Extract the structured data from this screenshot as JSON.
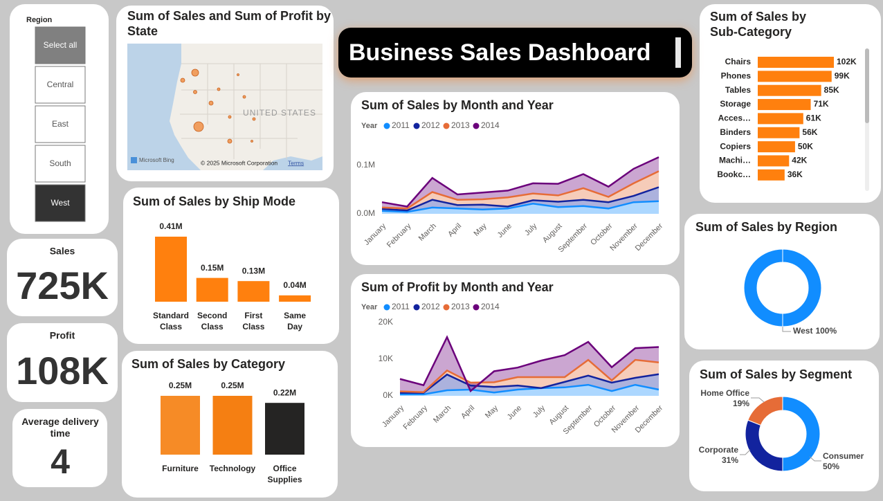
{
  "dashboard_title": "Business Sales Dashboard",
  "slicer": {
    "title": "Region",
    "options": [
      "Select all",
      "Central",
      "East",
      "South",
      "West"
    ],
    "selected": 4
  },
  "cards": [
    {
      "label": "Sales",
      "value": "725K"
    },
    {
      "label": "Profit",
      "value": "108K"
    },
    {
      "label": "Average delivery time",
      "value": 4
    }
  ],
  "map": {
    "title": "Sum of Sales and Sum of Profit by State",
    "country_label": "UNITED STATES",
    "brand": "Microsoft Bing",
    "attribution": "© 2025 Microsoft Corporation",
    "terms_link": "Terms"
  },
  "chart_data": [
    {
      "type": "bar",
      "title": "Sum of Sales by Ship Mode",
      "categories": [
        "Standard Class",
        "Second Class",
        "First Class",
        "Same Day"
      ],
      "values": [
        0.41,
        0.15,
        0.13,
        0.04
      ],
      "value_labels": [
        "0.41M",
        "0.15M",
        "0.13M",
        "0.04M"
      ],
      "colors": [
        "#ff800e",
        "#ff800e",
        "#ff800e",
        "#ff800e"
      ]
    },
    {
      "type": "bar",
      "title": "Sum of Sales by Category",
      "categories": [
        "Furniture",
        "Technology",
        "Office Supplies"
      ],
      "values": [
        0.25,
        0.25,
        0.22
      ],
      "value_labels": [
        "0.25M",
        "0.25M",
        "0.22M"
      ],
      "colors": [
        "#f68b26",
        "#f57f12",
        "#252423"
      ]
    },
    {
      "type": "area",
      "stacked": true,
      "title": "Sum of Sales by Month and Year",
      "legend_title": "Year",
      "categories": [
        "January",
        "February",
        "March",
        "April",
        "May",
        "June",
        "July",
        "August",
        "September",
        "October",
        "November",
        "December"
      ],
      "series": [
        {
          "name": "2011",
          "color": "#118dff",
          "values": [
            0.006,
            0.004,
            0.013,
            0.011,
            0.009,
            0.011,
            0.021,
            0.014,
            0.016,
            0.011,
            0.024,
            0.026
          ]
        },
        {
          "name": "2012",
          "color": "#12239e",
          "values": [
            0.004,
            0.003,
            0.016,
            0.007,
            0.01,
            0.004,
            0.007,
            0.011,
            0.013,
            0.013,
            0.013,
            0.029
          ]
        },
        {
          "name": "2013",
          "color": "#e66c37",
          "values": [
            0.003,
            0.004,
            0.016,
            0.011,
            0.011,
            0.019,
            0.014,
            0.013,
            0.024,
            0.011,
            0.026,
            0.033
          ]
        },
        {
          "name": "2014",
          "color": "#6b007b",
          "values": [
            0.011,
            0.004,
            0.029,
            0.011,
            0.014,
            0.014,
            0.021,
            0.024,
            0.029,
            0.021,
            0.03,
            0.029
          ]
        }
      ],
      "ylim": [
        0,
        0.15
      ],
      "yticks": [
        {
          "value": 0,
          "label": "0.0M"
        },
        {
          "value": 0.1,
          "label": "0.1M"
        }
      ]
    },
    {
      "type": "area",
      "stacked": true,
      "title": "Sum of Profit by Month and Year",
      "legend_title": "Year",
      "categories": [
        "January",
        "February",
        "March",
        "April",
        "May",
        "June",
        "July",
        "August",
        "September",
        "October",
        "November",
        "December"
      ],
      "series": [
        {
          "name": "2011",
          "color": "#118dff",
          "values": [
            0.4,
            0.4,
            1.5,
            1.7,
            0.9,
            1.7,
            2.1,
            2.3,
            3.0,
            1.3,
            3.0,
            1.7
          ]
        },
        {
          "name": "2012",
          "color": "#12239e",
          "values": [
            0.4,
            0.4,
            4.3,
            1.1,
            1.5,
            1.1,
            0.0,
            1.5,
            2.5,
            2.3,
            1.9,
            4.2
          ]
        },
        {
          "name": "2013",
          "color": "#e66c37",
          "values": [
            0.4,
            0.2,
            1.1,
            0.8,
            1.3,
            2.3,
            3.0,
            1.3,
            4.3,
            0.6,
            4.9,
            3.2
          ]
        },
        {
          "name": "2014",
          "color": "#6b007b",
          "values": [
            3.4,
            1.9,
            9.1,
            -2.3,
            3.0,
            2.6,
            4.5,
            6.0,
            4.9,
            3.6,
            3.2,
            4.2
          ]
        }
      ],
      "ylim": [
        0,
        22
      ],
      "yticks": [
        {
          "value": 0,
          "label": "0K"
        },
        {
          "value": 10,
          "label": "10K"
        },
        {
          "value": 20,
          "label": "20K"
        }
      ]
    },
    {
      "type": "hbar",
      "title": "Sum of Sales by Sub-Category",
      "categories": [
        "Chairs",
        "Phones",
        "Tables",
        "Storage",
        "Acces…",
        "Binders",
        "Copiers",
        "Machi…",
        "Bookc…"
      ],
      "values": [
        102,
        99,
        85,
        71,
        61,
        56,
        50,
        42,
        36
      ],
      "value_labels": [
        "102K",
        "99K",
        "85K",
        "71K",
        "61K",
        "56K",
        "50K",
        "42K",
        "36K"
      ],
      "color": "#ff800e"
    },
    {
      "type": "donut",
      "title": "Sum of Sales by Region",
      "categories": [
        "West"
      ],
      "values": [
        100
      ],
      "value_labels": [
        "100%"
      ],
      "colors": [
        "#118dff"
      ]
    },
    {
      "type": "donut",
      "title": "Sum of Sales by Segment",
      "categories": [
        "Consumer",
        "Corporate",
        "Home Office"
      ],
      "values": [
        50,
        31,
        19
      ],
      "value_labels": [
        "50%",
        "31%",
        "19%"
      ],
      "colors": [
        "#118dff",
        "#12239e",
        "#e66c37"
      ]
    }
  ]
}
